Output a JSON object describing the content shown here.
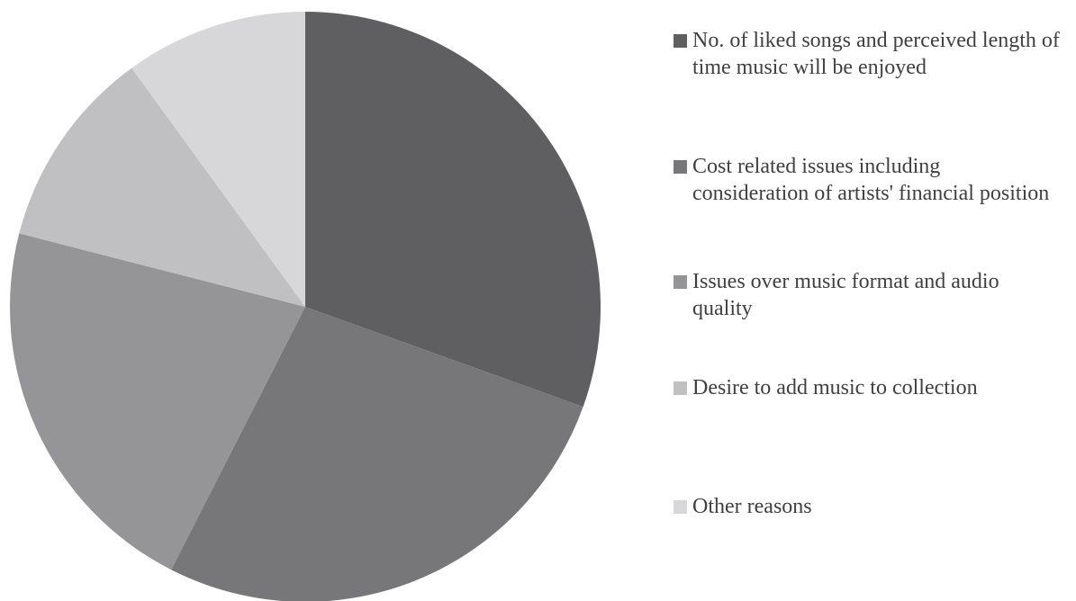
{
  "chart_data": {
    "type": "pie",
    "title": "",
    "start_angle_deg": 0,
    "direction": "clockwise",
    "legend_position": "right",
    "slices": [
      {
        "label": "No. of liked songs and perceived length of time music will be enjoyed",
        "value": 30.5,
        "color": "#5f5f61"
      },
      {
        "label": "Cost related issues including consideration of artists' financial position",
        "value": 27.0,
        "color": "#777779"
      },
      {
        "label": "Issues over music format and audio quality",
        "value": 21.5,
        "color": "#959597"
      },
      {
        "label": "Desire to add music to collection",
        "value": 11.0,
        "color": "#c0c0c2"
      },
      {
        "label": "Other reasons",
        "value": 10.0,
        "color": "#d7d7d9"
      }
    ]
  }
}
